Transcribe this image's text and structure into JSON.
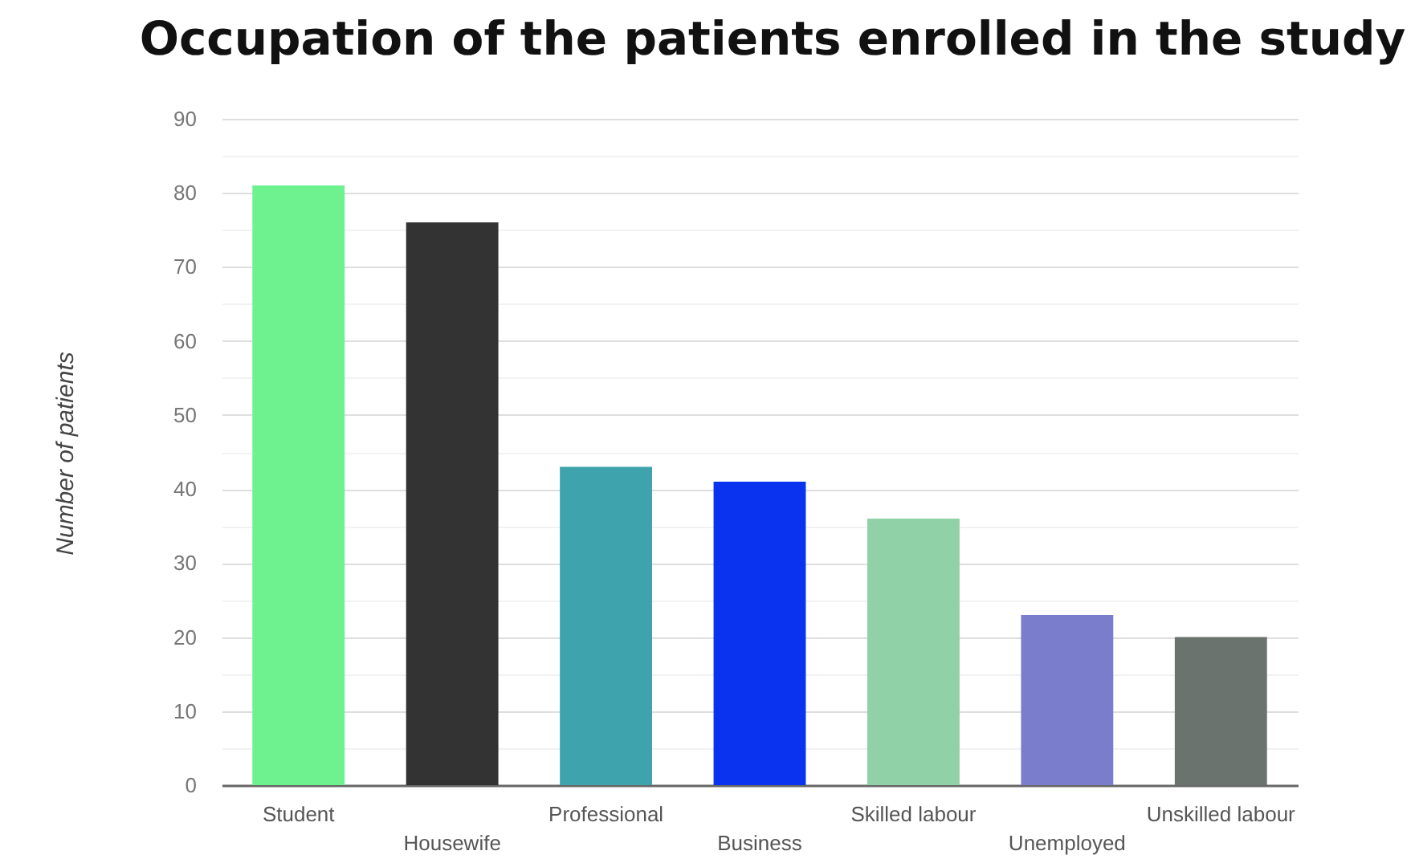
{
  "chart_data": {
    "type": "bar",
    "title": "Occupation of the patients enrolled in the study",
    "ylabel": "Number of patients",
    "categories": [
      "Student",
      "Housewife",
      "Professional",
      "Business",
      "Skilled labour",
      "Unemployed",
      "Unskilled labour"
    ],
    "values": [
      81,
      76,
      43,
      41,
      36,
      23,
      20
    ],
    "colors": [
      "#6ef28f",
      "#333333",
      "#3fa3ad",
      "#0a33f0",
      "#90d1a8",
      "#7a7ccc",
      "#6b736e"
    ],
    "ylim": [
      0,
      90
    ],
    "yticks": [
      0,
      {
        "value": 5,
        "label": null
      },
      10,
      {
        "value": 15,
        "label": null
      },
      20,
      {
        "value": 25,
        "label": null
      },
      30,
      {
        "value": 35,
        "label": null
      },
      40,
      {
        "value": 45,
        "label": null
      },
      50,
      {
        "value": 55,
        "label": null
      },
      60,
      {
        "value": 65,
        "label": null
      },
      70,
      {
        "value": 75,
        "label": null
      },
      80,
      {
        "value": 85,
        "label": null
      },
      90
    ],
    "grid": "y"
  }
}
